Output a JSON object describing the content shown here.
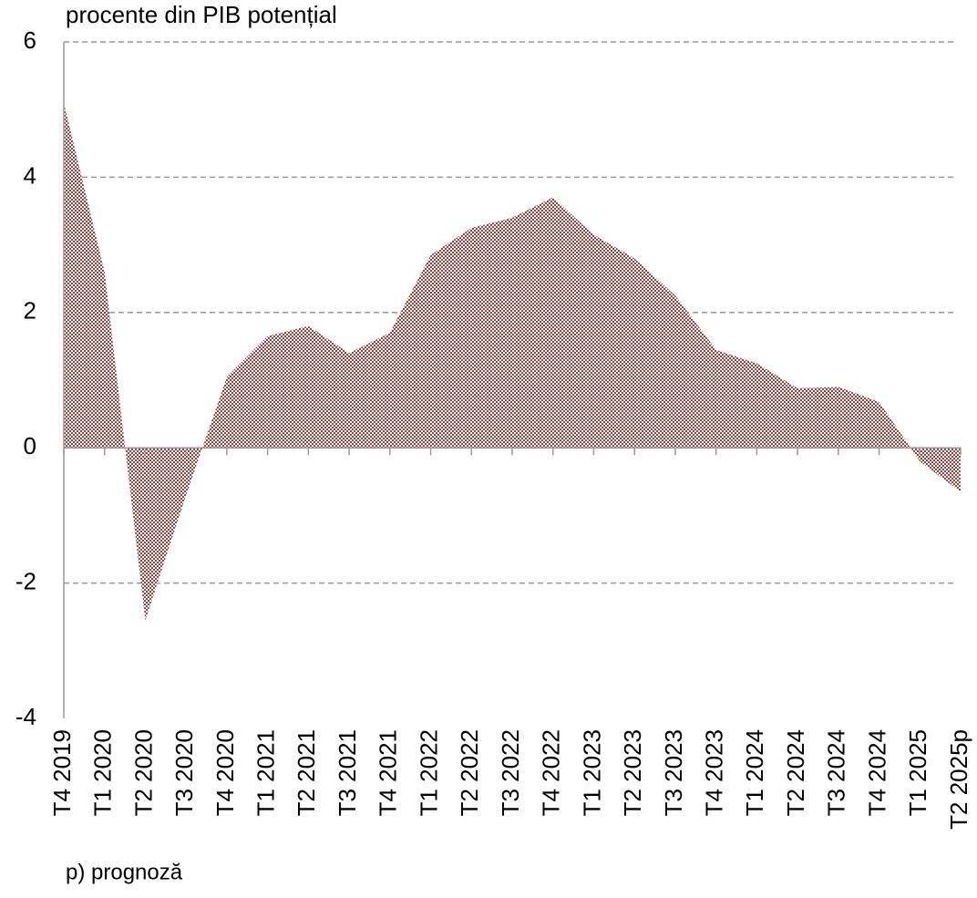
{
  "chart_data": {
    "type": "area",
    "title": "procente din PIB potențial",
    "footnote": "p) prognoză",
    "categories": [
      "T4 2019",
      "T1 2020",
      "T2 2020",
      "T3 2020",
      "T4 2020",
      "T1 2021",
      "T2 2021",
      "T3 2021",
      "T4 2021",
      "T1 2022",
      "T2 2022",
      "T3 2022",
      "T4 2022",
      "T1 2023",
      "T2 2023",
      "T3 2023",
      "T4 2023",
      "T1 2024",
      "T2 2024",
      "T3 2024",
      "T4 2024",
      "T1 2025",
      "T2 2025p"
    ],
    "values": [
      5.1,
      2.6,
      -2.55,
      -0.7,
      1.05,
      1.65,
      1.8,
      1.4,
      1.7,
      2.85,
      3.25,
      3.4,
      3.7,
      3.15,
      2.8,
      2.25,
      1.45,
      1.25,
      0.88,
      0.9,
      0.68,
      -0.2,
      -0.65
    ],
    "color": "#a0403c",
    "ylim": [
      -4,
      6
    ],
    "yticks": [
      -4,
      -2,
      0,
      2,
      4,
      6
    ],
    "grid": true
  }
}
